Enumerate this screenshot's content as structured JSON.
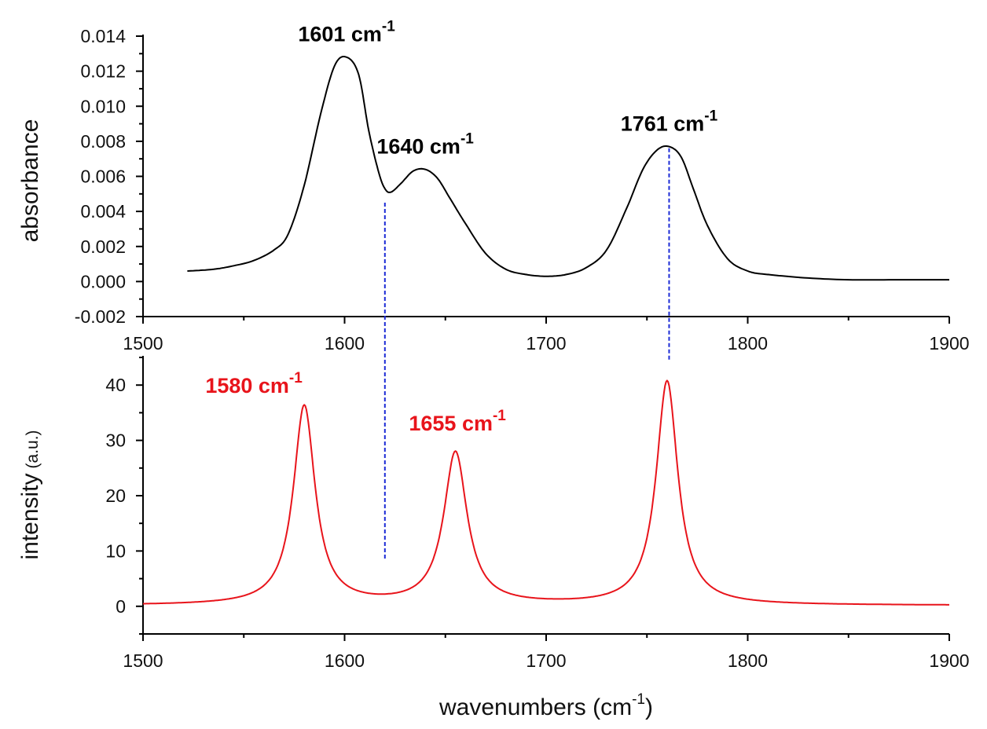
{
  "chart_data": [
    {
      "type": "line",
      "panel": "top",
      "title": "",
      "ylabel": "absorbance",
      "xlabel": "",
      "xlim": [
        1500,
        1900
      ],
      "ylim": [
        -0.002,
        0.014
      ],
      "xticks": [
        1500,
        1600,
        1700,
        1800,
        1900
      ],
      "xtick_labels": [
        "1500",
        "1600",
        "1700",
        "1800",
        "1900"
      ],
      "yticks": [
        -0.002,
        0.0,
        0.002,
        0.004,
        0.006,
        0.008,
        0.01,
        0.012,
        0.014
      ],
      "ytick_labels": [
        "-0.002",
        "0.000",
        "0.002",
        "0.004",
        "0.006",
        "0.008",
        "0.010",
        "0.012",
        "0.014"
      ],
      "grid": false,
      "series": [
        {
          "name": "absorbance",
          "color": "#000000",
          "x": [
            1522,
            1535,
            1545,
            1555,
            1565,
            1572,
            1580,
            1588,
            1595,
            1601,
            1607,
            1612,
            1617,
            1620,
            1623,
            1628,
            1634,
            1640,
            1646,
            1652,
            1660,
            1670,
            1680,
            1690,
            1700,
            1710,
            1720,
            1730,
            1740,
            1748,
            1755,
            1761,
            1767,
            1773,
            1780,
            1790,
            1800,
            1810,
            1830,
            1850,
            1870,
            1900
          ],
          "y": [
            0.0006,
            0.0007,
            0.0009,
            0.0012,
            0.0018,
            0.0027,
            0.0055,
            0.0095,
            0.0123,
            0.0128,
            0.0118,
            0.0086,
            0.0062,
            0.0053,
            0.0051,
            0.0056,
            0.0063,
            0.0064,
            0.0059,
            0.0048,
            0.0033,
            0.0016,
            0.0007,
            0.0004,
            0.0003,
            0.0004,
            0.0008,
            0.0018,
            0.0042,
            0.0064,
            0.0075,
            0.0077,
            0.0071,
            0.0053,
            0.0032,
            0.0013,
            0.0006,
            0.0004,
            0.0002,
            0.0001,
            0.0001,
            0.0001
          ]
        }
      ],
      "annotations": [
        {
          "text": "1601 cm",
          "sup": "-1",
          "x": 1601,
          "y": 0.0137,
          "color": "#000000"
        },
        {
          "text": "1640 cm",
          "sup": "-1",
          "x": 1640,
          "y": 0.0073,
          "color": "#000000"
        },
        {
          "text": "1761 cm",
          "sup": "-1",
          "x": 1761,
          "y": 0.0086,
          "color": "#000000"
        }
      ]
    },
    {
      "type": "line",
      "panel": "bottom",
      "title": "",
      "ylabel": "intensity",
      "ylabel_unit": "(a.u.)",
      "xlabel": "wavenumbers (cm",
      "xlabel_sup": "-1",
      "xlabel_close": ")",
      "xlim": [
        1500,
        1900
      ],
      "ylim": [
        -5,
        45
      ],
      "xticks": [
        1500,
        1600,
        1700,
        1800,
        1900
      ],
      "xtick_labels": [
        "1500",
        "1600",
        "1700",
        "1800",
        "1900"
      ],
      "yticks": [
        0,
        10,
        20,
        30,
        40
      ],
      "ytick_labels": [
        "0",
        "10",
        "20",
        "30",
        "40"
      ],
      "grid": false,
      "series": [
        {
          "name": "intensity",
          "color": "#e8141b",
          "peaks": [
            {
              "center": 1580,
              "height": 36,
              "hwhm": 6.5
            },
            {
              "center": 1655,
              "height": 27.5,
              "hwhm": 7.0
            },
            {
              "center": 1760,
              "height": 40.5,
              "hwhm": 6.5
            }
          ],
          "baseline": 0.15
        }
      ],
      "annotations": [
        {
          "text": "1580 cm",
          "sup": "-1",
          "x": 1555,
          "y": 38.6,
          "color": "#e8141b"
        },
        {
          "text": "1655 cm",
          "sup": "-1",
          "x": 1656,
          "y": 31.8,
          "color": "#e8141b"
        }
      ]
    }
  ],
  "connectors": [
    {
      "name": "connector-1620",
      "x": 1620,
      "color": "#1c2bd6",
      "from_top_value": 0.0045,
      "to_bottom_value": 8.5
    },
    {
      "name": "connector-1761",
      "x": 1761,
      "color": "#1c2bd6",
      "from_top_value": 0.0076,
      "to_bottom_value": 44.5
    }
  ],
  "colors": {
    "axis": "#000000",
    "top_series": "#000000",
    "bottom_series": "#e8141b",
    "connector": "#1c2bd6"
  }
}
